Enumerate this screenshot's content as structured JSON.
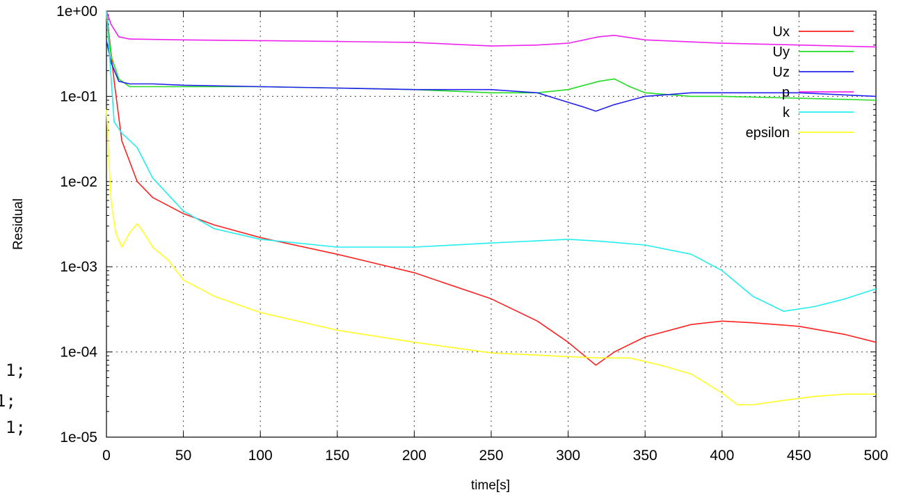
{
  "background": {
    "code_fragments": [
      "1;",
      "1;",
      "1;"
    ]
  },
  "chart_data": {
    "type": "line",
    "title": "",
    "xlabel": "time[s]",
    "ylabel": "Residual",
    "xlim": [
      0,
      500
    ],
    "ylim": [
      1e-05,
      1
    ],
    "yscale": "log",
    "grid": true,
    "legend_position": "top-right",
    "x_ticks": [
      0,
      50,
      100,
      150,
      200,
      250,
      300,
      350,
      400,
      450,
      500
    ],
    "x_tick_labels": [
      "0",
      "50",
      "100",
      "150",
      "200",
      "250",
      "300",
      "350",
      "400",
      "450",
      "500"
    ],
    "y_ticks": [
      1,
      0.1,
      0.01,
      0.001,
      0.0001,
      1e-05
    ],
    "y_tick_labels": [
      "1e+00",
      "1e-01",
      "1e-02",
      "1e-03",
      "1e-04",
      "1e-05"
    ],
    "series": [
      {
        "name": "Ux",
        "color": "#ff2020",
        "x": [
          0,
          5,
          10,
          20,
          30,
          50,
          70,
          100,
          150,
          200,
          250,
          280,
          300,
          318,
          330,
          350,
          380,
          400,
          420,
          450,
          480,
          500
        ],
        "y": [
          1.0,
          0.15,
          0.03,
          0.01,
          0.0065,
          0.0042,
          0.0031,
          0.0022,
          0.0014,
          0.00085,
          0.00042,
          0.00023,
          0.00013,
          7e-05,
          0.0001,
          0.00015,
          0.00021,
          0.00023,
          0.00022,
          0.0002,
          0.00016,
          0.00013
        ]
      },
      {
        "name": "Uy",
        "color": "#22dd22",
        "x": [
          0,
          3,
          8,
          15,
          30,
          50,
          100,
          150,
          200,
          250,
          280,
          300,
          320,
          330,
          340,
          350,
          380,
          400,
          450,
          500
        ],
        "y": [
          0.9,
          0.3,
          0.16,
          0.13,
          0.13,
          0.13,
          0.13,
          0.125,
          0.12,
          0.11,
          0.11,
          0.12,
          0.15,
          0.16,
          0.13,
          0.11,
          0.1,
          0.1,
          0.095,
          0.09
        ]
      },
      {
        "name": "Uz",
        "color": "#2222ee",
        "x": [
          0,
          3,
          8,
          15,
          30,
          50,
          100,
          150,
          200,
          250,
          280,
          300,
          310,
          318,
          330,
          350,
          380,
          400,
          450,
          500
        ],
        "y": [
          0.45,
          0.25,
          0.15,
          0.14,
          0.14,
          0.135,
          0.13,
          0.125,
          0.12,
          0.12,
          0.11,
          0.085,
          0.075,
          0.067,
          0.08,
          0.1,
          0.11,
          0.11,
          0.11,
          0.1
        ]
      },
      {
        "name": "p",
        "color": "#ee22ee",
        "x": [
          0,
          3,
          8,
          15,
          50,
          100,
          150,
          200,
          250,
          280,
          300,
          320,
          330,
          350,
          400,
          450,
          500
        ],
        "y": [
          1.0,
          0.7,
          0.5,
          0.47,
          0.46,
          0.45,
          0.44,
          0.43,
          0.39,
          0.4,
          0.42,
          0.5,
          0.52,
          0.46,
          0.42,
          0.4,
          0.38
        ]
      },
      {
        "name": "k",
        "color": "#22eeee",
        "x": [
          0,
          5,
          10,
          20,
          30,
          50,
          70,
          100,
          150,
          200,
          250,
          300,
          320,
          350,
          380,
          400,
          420,
          440,
          460,
          480,
          500
        ],
        "y": [
          1.0,
          0.05,
          0.037,
          0.025,
          0.011,
          0.0045,
          0.0028,
          0.0021,
          0.0017,
          0.0017,
          0.0019,
          0.0021,
          0.002,
          0.0018,
          0.0014,
          0.0009,
          0.00045,
          0.0003,
          0.00034,
          0.00042,
          0.00055
        ]
      },
      {
        "name": "epsilon",
        "color": "#ffff22",
        "x": [
          0,
          3,
          6,
          10,
          15,
          20,
          25,
          30,
          40,
          50,
          70,
          100,
          150,
          200,
          250,
          300,
          320,
          340,
          360,
          380,
          400,
          410,
          420,
          440,
          460,
          480,
          500
        ],
        "y": [
          0.07,
          0.006,
          0.0025,
          0.0017,
          0.0025,
          0.0032,
          0.0024,
          0.0017,
          0.0012,
          0.0007,
          0.00045,
          0.00029,
          0.00018,
          0.00013,
          9.75e-05,
          8.8e-05,
          8.5e-05,
          8.5e-05,
          7e-05,
          5.5e-05,
          3.3e-05,
          2.4e-05,
          2.4e-05,
          2.7e-05,
          3e-05,
          3.2e-05,
          3.2e-05
        ]
      }
    ]
  }
}
